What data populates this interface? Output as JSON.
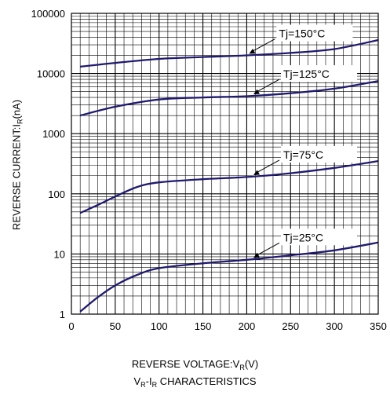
{
  "chart_data": {
    "type": "line",
    "xscale": "linear",
    "yscale": "log",
    "xlim": [
      0,
      350
    ],
    "ylim": [
      1,
      100000
    ],
    "x_ticks": [
      "0",
      "50",
      "100",
      "150",
      "200",
      "250",
      "300",
      "350"
    ],
    "y_ticks": [
      "1",
      "10",
      "100",
      "1000",
      "10000",
      "100000"
    ],
    "grid": true,
    "ylabel": {
      "prefix": "REVERSE CURRENT:I",
      "sub": "R",
      "suffix": "(nA)"
    },
    "xlabel": {
      "prefix": "REVERSE VOLTAGE:V",
      "sub": "R",
      "suffix": "(V)"
    },
    "caption": {
      "a": "V",
      "a_sub": "R",
      "dash": "-I",
      "b_sub": "R",
      "rest": " CHARACTERISTICS"
    },
    "series": [
      {
        "name": "Tj=150°C",
        "label_at_x": 200,
        "x": [
          10,
          50,
          100,
          150,
          200,
          250,
          300,
          350
        ],
        "y": [
          13000,
          15000,
          17500,
          18800,
          20000,
          22000,
          25500,
          36000
        ]
      },
      {
        "name": "Tj=125°C",
        "label_at_x": 205,
        "x": [
          10,
          50,
          100,
          150,
          200,
          250,
          300,
          350
        ],
        "y": [
          2000,
          2800,
          3700,
          4000,
          4200,
          4700,
          5600,
          7500
        ]
      },
      {
        "name": "Tj=75°C",
        "label_at_x": 205,
        "x": [
          10,
          30,
          50,
          75,
          100,
          150,
          200,
          250,
          300,
          350
        ],
        "y": [
          48,
          65,
          90,
          130,
          155,
          175,
          190,
          220,
          270,
          350
        ]
      },
      {
        "name": "Tj=25°C",
        "label_at_x": 205,
        "x": [
          10,
          30,
          50,
          75,
          100,
          150,
          200,
          250,
          300,
          350
        ],
        "y": [
          1.1,
          1.9,
          3.0,
          4.5,
          5.8,
          7.0,
          8.0,
          9.5,
          11.5,
          15.5
        ]
      }
    ],
    "line_color": "#1f1a6e"
  }
}
